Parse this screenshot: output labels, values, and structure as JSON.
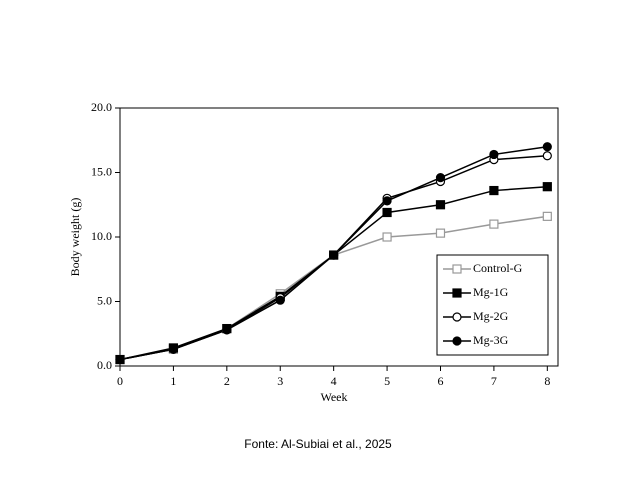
{
  "chart_data": {
    "type": "line",
    "x_label": "Week",
    "y_label": "Body weight (g)",
    "caption": "Fonte: Al-Subiai et al., 2025",
    "x": [
      0,
      1,
      2,
      3,
      4,
      5,
      6,
      7,
      8
    ],
    "xlim": [
      0,
      8.2
    ],
    "xticks": [
      0,
      1,
      2,
      3,
      4,
      5,
      6,
      7,
      8
    ],
    "ylim": [
      0,
      20
    ],
    "yticks": [
      {
        "value": 0,
        "label": "0.0"
      },
      {
        "value": 5,
        "label": "5.0"
      },
      {
        "value": 10,
        "label": "10.0"
      },
      {
        "value": 15,
        "label": "15.0"
      },
      {
        "value": 20,
        "label": "20.0"
      }
    ],
    "legend": "lower right",
    "series": [
      {
        "name": "Control-G",
        "color": "#999999",
        "marker": "square",
        "filled": false,
        "values": [
          0.5,
          1.3,
          2.9,
          5.6,
          8.6,
          10.0,
          10.3,
          11.0,
          11.6
        ]
      },
      {
        "name": "Mg-1G",
        "color": "#000000",
        "marker": "square",
        "filled": true,
        "values": [
          0.5,
          1.4,
          2.9,
          5.4,
          8.6,
          11.9,
          12.5,
          13.6,
          13.9
        ]
      },
      {
        "name": "Mg-2G",
        "color": "#000000",
        "marker": "circle",
        "filled": false,
        "values": [
          0.5,
          1.3,
          2.8,
          5.3,
          8.6,
          13.0,
          14.3,
          16.0,
          16.3
        ]
      },
      {
        "name": "Mg-3G",
        "color": "#000000",
        "marker": "circle",
        "filled": true,
        "values": [
          0.5,
          1.3,
          2.8,
          5.1,
          8.6,
          12.8,
          14.6,
          16.4,
          17.0
        ]
      }
    ]
  }
}
